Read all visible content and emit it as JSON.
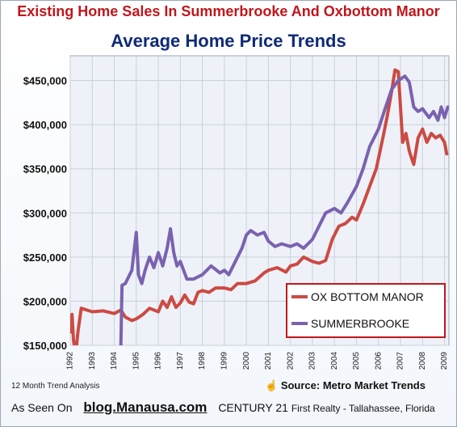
{
  "header": {
    "headline": "Existing Home Sales In Summerbrooke And Oxbottom Manor",
    "chart_title": "Average Home Price Trends"
  },
  "footer": {
    "note": "12 Month Trend Analysis",
    "source": "Source: Metro Market Trends",
    "as_seen_on": "As Seen On",
    "blog": "blog.Manausa.com",
    "brand": "CENTURY 21",
    "brand_tail": "First Realty - Tallahassee, Florida"
  },
  "colors": {
    "ox_bottom_manor": "#cc4a43",
    "summerbrooke": "#7a62b0",
    "title_red": "#c0171d",
    "title_blue": "#102a78"
  },
  "chart_data": {
    "type": "line",
    "title": "Average Home Price Trends",
    "xlabel": "",
    "ylabel": "",
    "xlim": [
      1992,
      2009.2
    ],
    "ylim": [
      150000,
      478000
    ],
    "grid": true,
    "legend_position": "bottom-right",
    "y_ticks": [
      150000,
      200000,
      250000,
      300000,
      350000,
      400000,
      450000
    ],
    "y_tick_labels": [
      "$150,000",
      "$200,000",
      "$250,000",
      "$300,000",
      "$350,000",
      "$400,000",
      "$450,000"
    ],
    "x_ticks": [
      1992,
      1993,
      1994,
      1995,
      1996,
      1997,
      1998,
      1999,
      2000,
      2001,
      2002,
      2003,
      2004,
      2005,
      2006,
      2007,
      2008,
      2009
    ],
    "x_tick_labels": [
      "1992",
      "1993",
      "1994",
      "1995",
      "1996",
      "1997",
      "1998",
      "1999",
      "2000",
      "2001",
      "2002",
      "2003",
      "2004",
      "2005",
      "2006",
      "2007",
      "2008",
      "2009"
    ],
    "series": [
      {
        "name": "OX BOTTOM  MANOR",
        "color": "#cc4a43",
        "x": [
          1992.0,
          1992.08,
          1992.15,
          1992.25,
          1992.35,
          1992.5,
          1993.0,
          1993.5,
          1994.0,
          1994.3,
          1994.5,
          1994.8,
          1995.0,
          1995.3,
          1995.6,
          1996.0,
          1996.2,
          1996.4,
          1996.6,
          1996.8,
          1997.0,
          1997.2,
          1997.4,
          1997.6,
          1997.8,
          1998.0,
          1998.3,
          1998.6,
          1999.0,
          1999.3,
          1999.6,
          2000.0,
          2000.4,
          2000.8,
          2001.0,
          2001.4,
          2001.8,
          2002.0,
          2002.3,
          2002.6,
          2003.0,
          2003.3,
          2003.6,
          2003.9,
          2004.2,
          2004.5,
          2004.8,
          2005.0,
          2005.3,
          2005.6,
          2005.9,
          2006.2,
          2006.4,
          2006.6,
          2006.75,
          2006.9,
          2007.0,
          2007.1,
          2007.25,
          2007.4,
          2007.6,
          2007.8,
          2008.0,
          2008.2,
          2008.4,
          2008.6,
          2008.8,
          2009.0,
          2009.1
        ],
        "y": [
          165000,
          185000,
          155000,
          140000,
          165000,
          192000,
          188000,
          189000,
          186000,
          190000,
          182000,
          178000,
          180000,
          185000,
          192000,
          188000,
          200000,
          193000,
          205000,
          193000,
          198000,
          207000,
          199000,
          197000,
          210000,
          212000,
          210000,
          215000,
          215000,
          213000,
          220000,
          220000,
          223000,
          232000,
          235000,
          238000,
          233000,
          240000,
          242000,
          250000,
          245000,
          243000,
          246000,
          270000,
          285000,
          288000,
          295000,
          292000,
          310000,
          330000,
          350000,
          385000,
          410000,
          438000,
          462000,
          460000,
          420000,
          380000,
          390000,
          370000,
          355000,
          385000,
          395000,
          380000,
          390000,
          385000,
          388000,
          380000,
          367000
        ]
      },
      {
        "name": "SUMMERBROOKE",
        "color": "#7a62b0",
        "x": [
          1994.3,
          1994.35,
          1994.5,
          1994.8,
          1995.0,
          1995.1,
          1995.25,
          1995.4,
          1995.6,
          1995.8,
          1996.0,
          1996.2,
          1996.4,
          1996.55,
          1996.7,
          1996.85,
          1997.0,
          1997.3,
          1997.6,
          1998.0,
          1998.4,
          1998.8,
          1999.0,
          1999.2,
          1999.5,
          1999.8,
          2000.0,
          2000.2,
          2000.5,
          2000.8,
          2001.0,
          2001.3,
          2001.6,
          2002.0,
          2002.3,
          2002.6,
          2003.0,
          2003.3,
          2003.6,
          2004.0,
          2004.3,
          2004.6,
          2005.0,
          2005.3,
          2005.6,
          2006.0,
          2006.3,
          2006.6,
          2006.9,
          2007.2,
          2007.4,
          2007.6,
          2007.8,
          2008.0,
          2008.3,
          2008.5,
          2008.7,
          2008.85,
          2009.0,
          2009.15
        ],
        "y": [
          150000,
          218000,
          220000,
          235000,
          278000,
          230000,
          220000,
          235000,
          250000,
          238000,
          255000,
          240000,
          260000,
          282000,
          255000,
          240000,
          245000,
          225000,
          225000,
          230000,
          240000,
          232000,
          235000,
          230000,
          245000,
          260000,
          275000,
          280000,
          275000,
          278000,
          268000,
          262000,
          265000,
          262000,
          265000,
          260000,
          270000,
          285000,
          300000,
          305000,
          300000,
          312000,
          330000,
          350000,
          375000,
          395000,
          418000,
          440000,
          450000,
          455000,
          448000,
          420000,
          415000,
          418000,
          408000,
          415000,
          405000,
          420000,
          408000,
          420000
        ]
      }
    ]
  }
}
